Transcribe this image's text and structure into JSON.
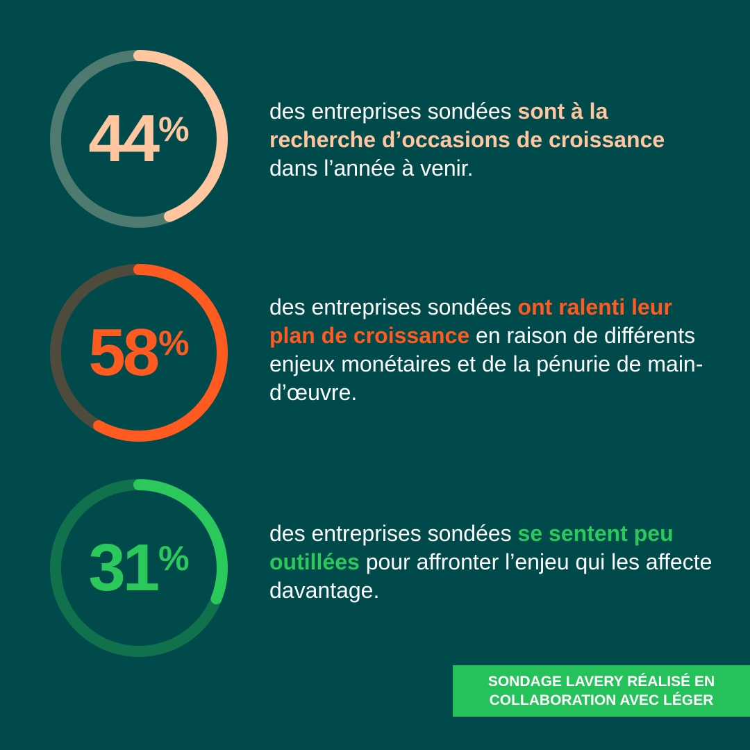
{
  "stats": [
    {
      "value": 44,
      "number": "44",
      "percent_sign": "%",
      "accent": "#ffc6a0",
      "track": "#4f7a70",
      "text_before": "des entreprises sondées ",
      "text_highlight": "sont à la recherche d’occasions de croissance",
      "text_after": " dans l’année à venir."
    },
    {
      "value": 58,
      "number": "58",
      "percent_sign": "%",
      "accent": "#ff5a1f",
      "track": "#4e4a3c",
      "text_before": "des entreprises sondées ",
      "text_highlight": "ont ralenti leur plan de croissance",
      "text_after": " en raison de différents enjeux monétaires et de la pénurie de main-d’œuvre."
    },
    {
      "value": 31,
      "number": "31",
      "percent_sign": "%",
      "accent": "#2bc95b",
      "track": "#11714c",
      "text_before": "des entreprises sondées ",
      "text_highlight": "se sentent peu outillées",
      "text_after": " pour affronter l’enjeu qui les affecte davantage."
    }
  ],
  "footer": {
    "line1": "SONDAGE LAVERY RÉALISÉ EN",
    "line2": "COLLABORATION AVEC LÉGER"
  }
}
